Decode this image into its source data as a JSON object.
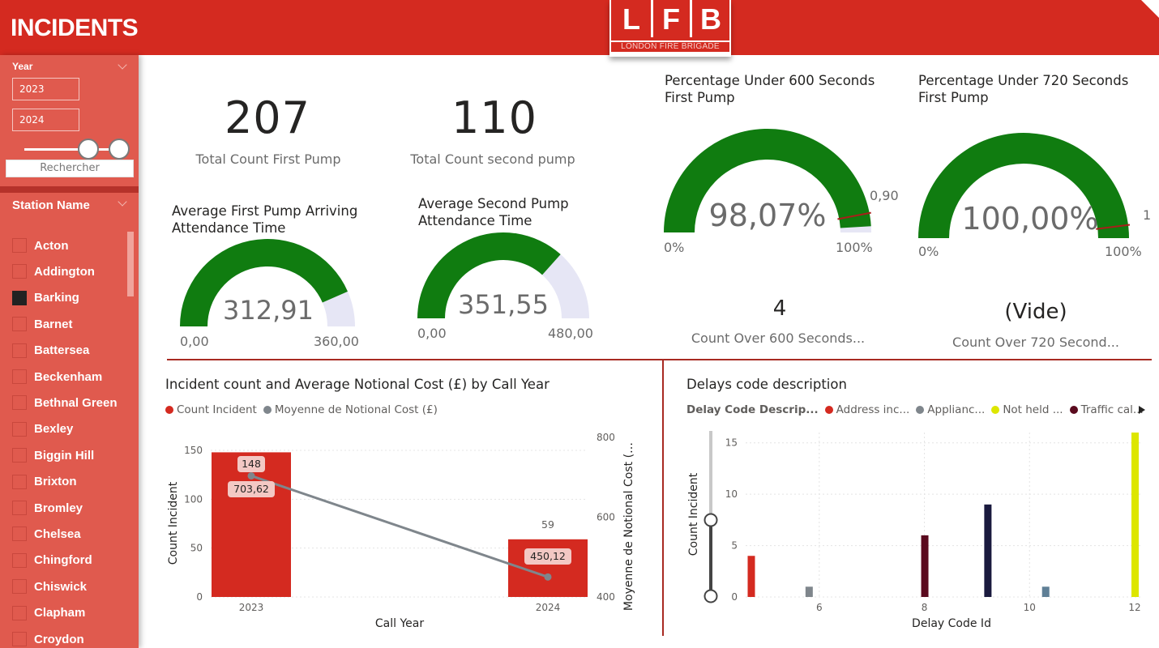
{
  "header": {
    "title": "INCIDENTS",
    "logo_letters": [
      "L",
      "F",
      "B"
    ],
    "logo_subtitle": "LONDON FIRE BRIGADE"
  },
  "sidebar": {
    "year_label": "Year",
    "year_from": "2023",
    "year_to": "2024",
    "station_label": "Station Name",
    "search_placeholder": "Rechercher",
    "stations": [
      {
        "name": "Acton",
        "checked": false
      },
      {
        "name": "Addington",
        "checked": false
      },
      {
        "name": "Barking",
        "checked": true
      },
      {
        "name": "Barnet",
        "checked": false
      },
      {
        "name": "Battersea",
        "checked": false
      },
      {
        "name": "Beckenham",
        "checked": false
      },
      {
        "name": "Bethnal Green",
        "checked": false
      },
      {
        "name": "Bexley",
        "checked": false
      },
      {
        "name": "Biggin Hill",
        "checked": false
      },
      {
        "name": "Brixton",
        "checked": false
      },
      {
        "name": "Bromley",
        "checked": false
      },
      {
        "name": "Chelsea",
        "checked": false
      },
      {
        "name": "Chingford",
        "checked": false
      },
      {
        "name": "Chiswick",
        "checked": false
      },
      {
        "name": "Clapham",
        "checked": false
      },
      {
        "name": "Croydon",
        "checked": false
      }
    ]
  },
  "kpis": {
    "first_pump_count": "207",
    "first_pump_caption": "Total Count First Pump",
    "second_pump_count": "110",
    "second_pump_caption": "Total Count second pump"
  },
  "gauges": {
    "first_pump": {
      "title": "Average First Pump Arriving Attendance Time",
      "value_label": "312,91",
      "min_label": "0,00",
      "max_label": "360,00",
      "value": 312.91,
      "min": 0,
      "max": 360
    },
    "second_pump": {
      "title": "Average Second Pump Attendance Time",
      "value_label": "351,55",
      "min_label": "0,00",
      "max_label": "480,00",
      "value": 351.55,
      "min": 0,
      "max": 480
    },
    "under_600": {
      "title": "Percentage Under 600 Seconds First Pump",
      "value_label": "98,07%",
      "min_label": "0%",
      "max_label": "100%",
      "target_label": "0,90",
      "value": 0.9807,
      "target": 0.9
    },
    "under_720": {
      "title": "Percentage Under 720 Seconds First Pump",
      "value_label": "100,00%",
      "min_label": "0%",
      "max_label": "100%",
      "target_label": "1",
      "value": 1.0,
      "target": 1.0
    }
  },
  "counts": {
    "over_600_value": "4",
    "over_600_caption": "Count Over 600 Seconds...",
    "over_720_value": "(Vide)",
    "over_720_caption": "Count Over 720 Second..."
  },
  "colors": {
    "header_red": "#d42a20",
    "gauge_green": "#107c10",
    "gauge_track": "#e6e6f5",
    "bar_red": "#d42a20",
    "line_grey": "#7f868c"
  },
  "chart_data": [
    {
      "type": "bar",
      "title": "Incident count and Average Notional Cost (£) by Call Year",
      "legend": [
        "Count Incident",
        "Moyenne de Notional Cost (£)"
      ],
      "legend_colors": [
        "#d42a20",
        "#7f868c"
      ],
      "categories": [
        "2023",
        "2024"
      ],
      "series": [
        {
          "name": "Count Incident",
          "type": "bar",
          "values": [
            148,
            59
          ],
          "value_labels": [
            "148",
            "59"
          ]
        },
        {
          "name": "Moyenne de Notional Cost (£)",
          "type": "line",
          "values": [
            703.62,
            450.12
          ],
          "value_labels": [
            "703,62",
            "450,12"
          ]
        }
      ],
      "xlabel": "Call Year",
      "ylabel": "Count Incident",
      "y2label": "Moyenne de Notional Cost (…",
      "ylim": [
        0,
        150
      ],
      "yticks": [
        "0",
        "50",
        "100",
        "150"
      ],
      "y2lim": [
        400,
        800
      ],
      "y2ticks": [
        "400",
        "600",
        "800"
      ],
      "grid": true
    },
    {
      "type": "bar",
      "title": "Delays code description",
      "legend_title": "Delay Code Descrip...",
      "legend": [
        "Address inc...",
        "Applianc...",
        "Not held ...",
        "Traffic cal..."
      ],
      "legend_colors": [
        "#d42a20",
        "#7f868c",
        "#dde600",
        "#5a0a1e"
      ],
      "x": [
        4.7,
        5.8,
        8.0,
        9.2,
        10.3,
        12.0
      ],
      "values": [
        4,
        1,
        6,
        9,
        1,
        16
      ],
      "bar_colors": [
        "#d42a20",
        "#7f868c",
        "#5a0a1e",
        "#1a1a3e",
        "#5f7f96",
        "#dde600"
      ],
      "xlabel": "Delay Code Id",
      "ylabel": "Count Incident",
      "xlim": [
        4.6,
        12.0
      ],
      "xticks": [
        "6",
        "8",
        "10",
        "12"
      ],
      "ylim": [
        0,
        16
      ],
      "yticks": [
        "0",
        "5",
        "10",
        "15"
      ],
      "grid": true
    }
  ]
}
